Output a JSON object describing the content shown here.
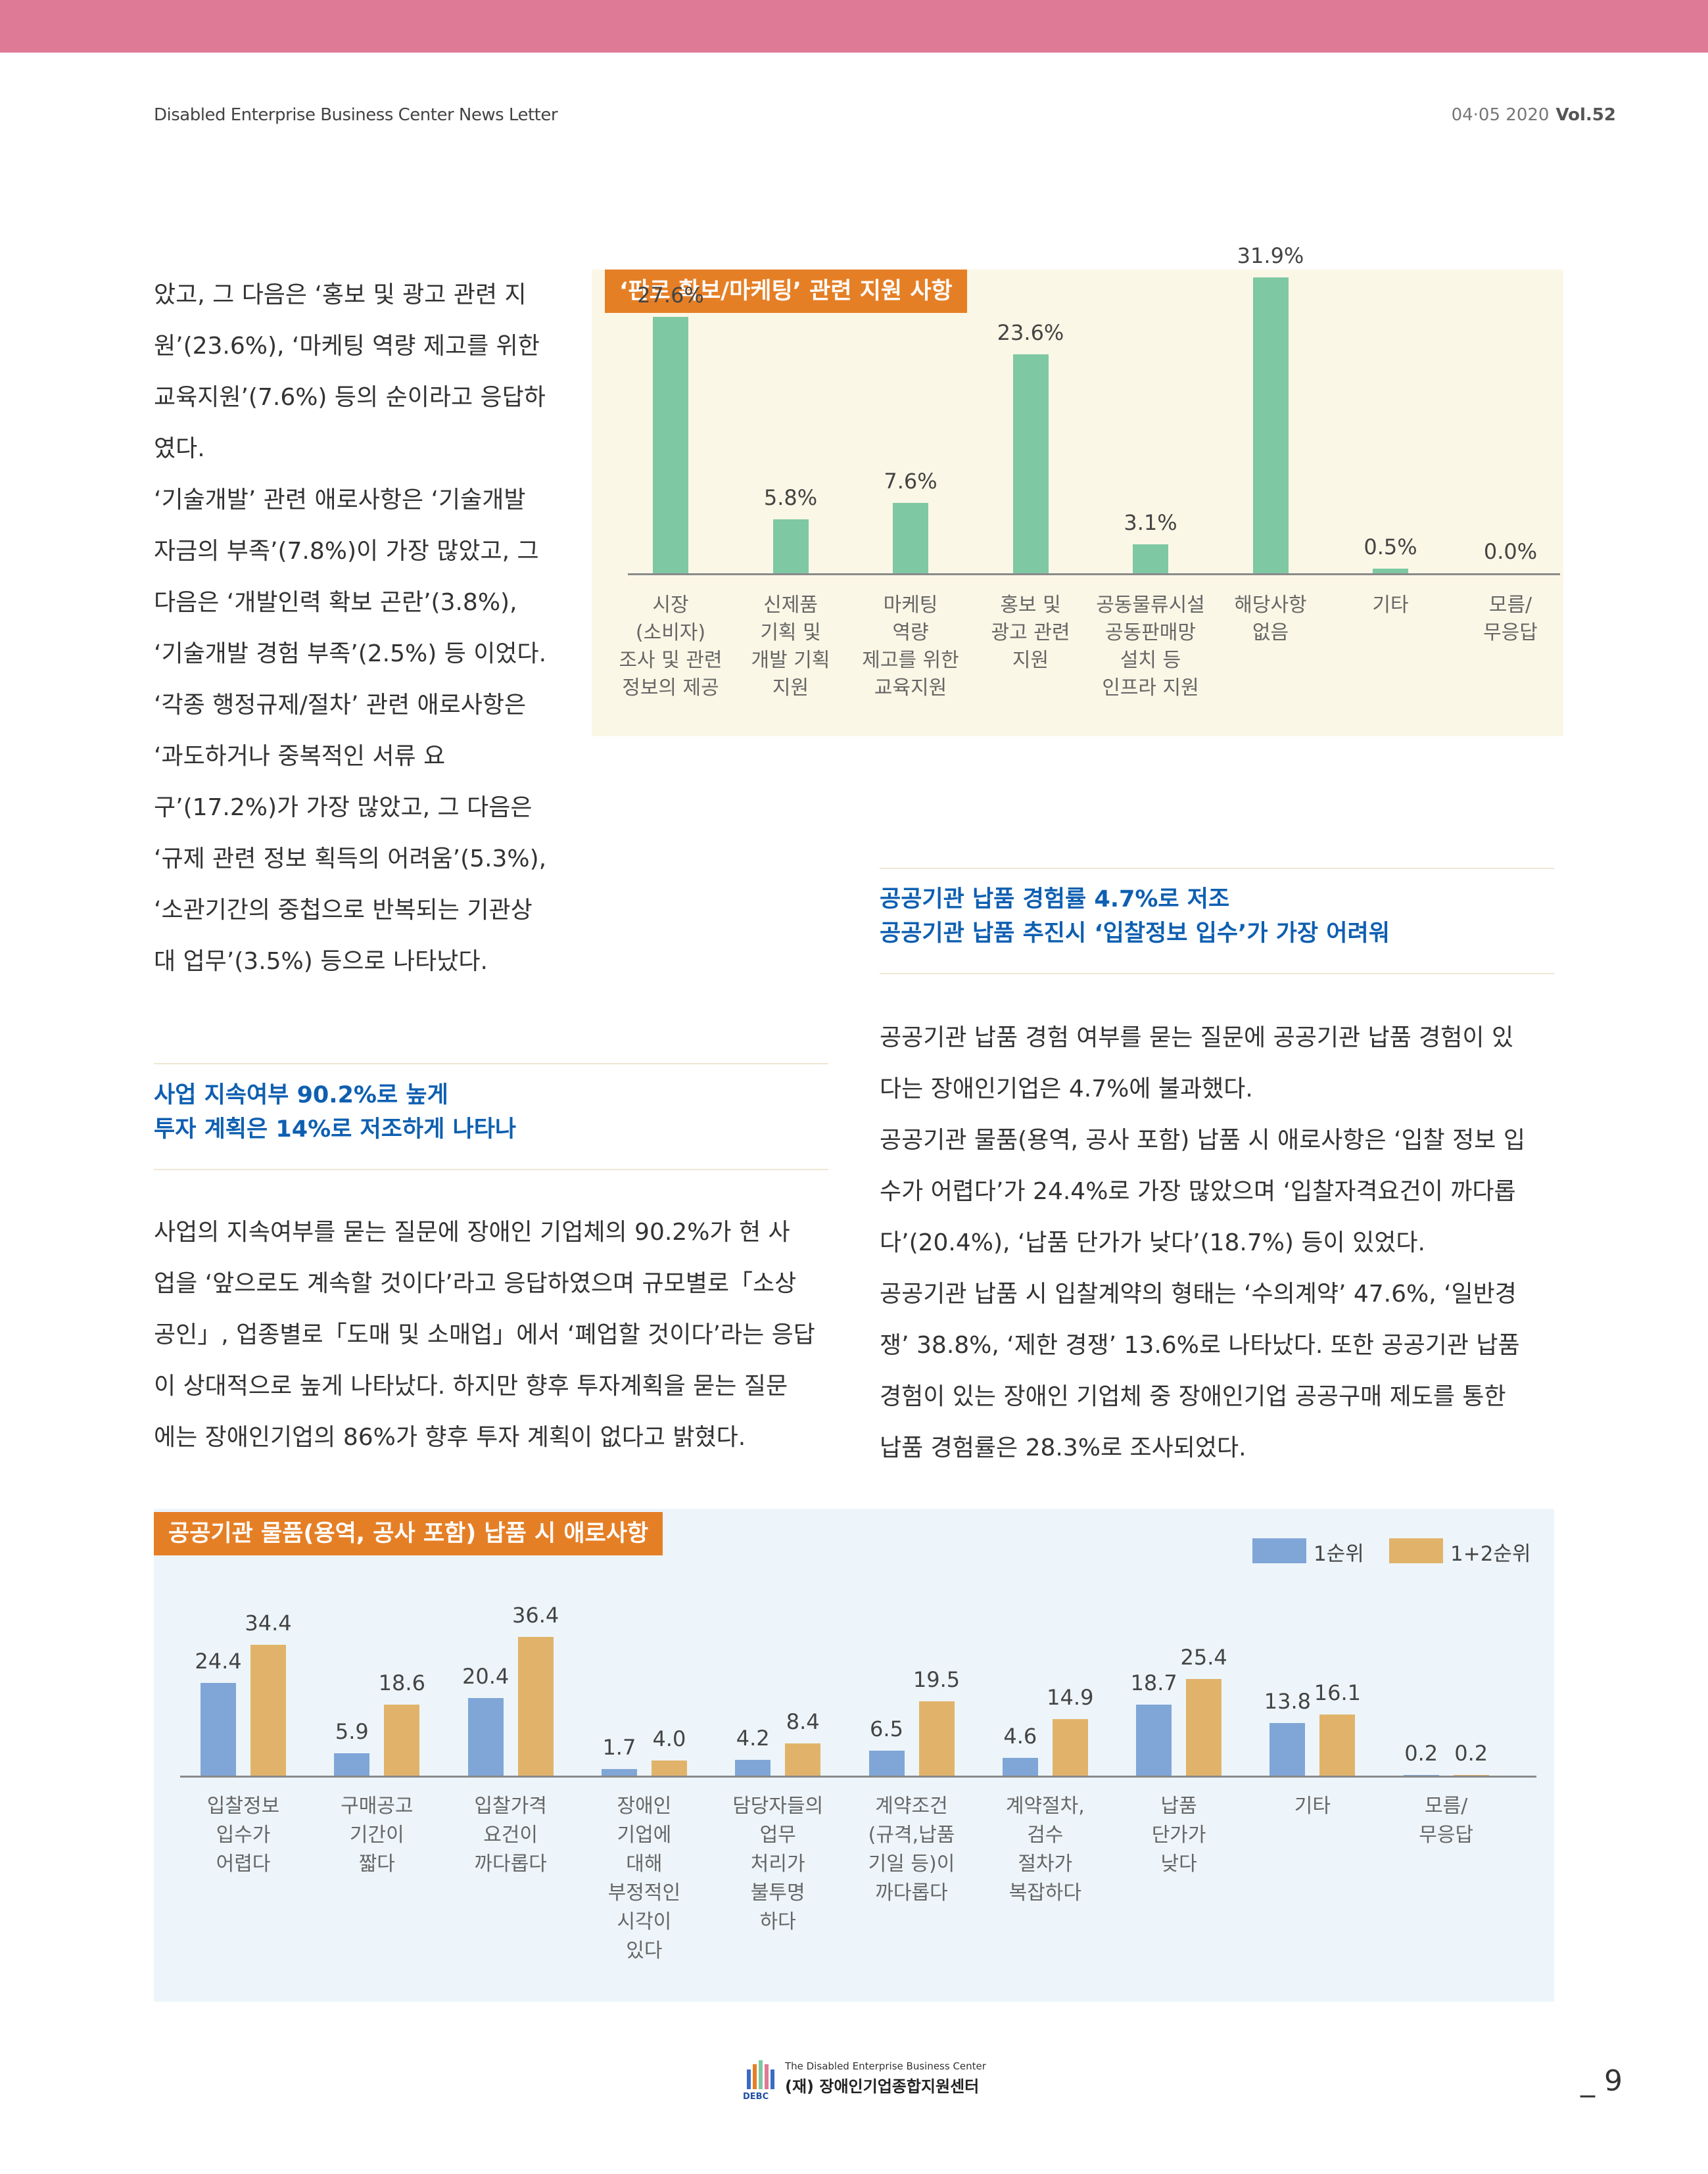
{
  "header": {
    "publication": "Disabled Enterprise Business Center News Letter",
    "date": "04·05 2020",
    "volume": "Vol.52"
  },
  "left_column": {
    "top_lines": [
      "았고, 그 다음은 ‘홍보 및 광고 관련 지",
      "원’(23.6%), ‘마케팅 역량 제고를 위한",
      "교육지원’(7.6%) 등의 순이라고 응답하",
      "였다.",
      "‘기술개발’ 관련 애로사항은 ‘기술개발",
      "자금의 부족’(7.8%)이 가장 많았고, 그",
      "다음은 ‘개발인력 확보 곤란’(3.8%),",
      "‘기술개발 경험 부족’(2.5%) 등 이었다.",
      "‘각종 행정규제/절차’ 관련 애로사항은",
      "‘과도하거나 중복적인 서류 요",
      "구’(17.2%)가 가장 많았고, 그 다음은",
      "‘규제 관련 정보 획득의 어려움’(5.3%),",
      "‘소관기간의 중첩으로 반복되는 기관상",
      "대 업무’(3.5%) 등으로 나타났다."
    ],
    "section_heading": [
      "사업 지속여부 90.2%로 높게",
      "투자 계획은 14%로 저조하게 나타나"
    ],
    "section_lines": [
      "사업의 지속여부를 묻는 질문에 장애인 기업체의 90.2%가 현 사",
      "업을 ‘앞으로도 계속할 것이다’라고 응답하였으며 규모별로「소상",
      "공인」, 업종별로「도매 및 소매업」에서 ‘폐업할 것이다’라는 응답",
      "이 상대적으로 높게 나타났다. 하지만 향후 투자계획을 묻는 질문",
      "에는 장애인기업의 86%가 향후 투자 계획이 없다고 밝혔다."
    ]
  },
  "right_column": {
    "section_heading": [
      "공공기관 납품 경험률 4.7%로 저조",
      "공공기관 납품 추진시 ‘입찰정보 입수’가 가장 어려워"
    ],
    "lines": [
      "공공기관 납품 경험 여부를 묻는 질문에 공공기관 납품 경험이 있",
      "다는 장애인기업은 4.7%에 불과했다.",
      "공공기관 물품(용역, 공사 포함) 납품 시 애로사항은 ‘입찰 정보 입",
      "수가 어렵다’가 24.4%로 가장 많았으며 ‘입찰자격요건이 까다롭",
      "다’(20.4%), ‘납품 단가가 낮다’(18.7%) 등이 있었다.",
      "공공기관 납품 시 입찰계약의 형태는 ‘수의계약’ 47.6%, ‘일반경",
      "쟁’ 38.8%, ‘제한 경쟁’ 13.6%로 나타났다. 또한 공공기관 납품",
      "경험이 있는 장애인 기업체 중 장애인기업 공공구매 제도를 통한",
      "납품 경험률은 28.3%로 조사되었다."
    ]
  },
  "chart_data": [
    {
      "type": "bar",
      "title": "‘판로 확보/마케팅’ 관련 지원 사항",
      "categories": [
        [
          "시장",
          "(소비자)",
          "조사 및 관련",
          "정보의 제공"
        ],
        [
          "신제품",
          "기획 및",
          "개발 기획",
          "지원"
        ],
        [
          "마케팅",
          "역량",
          "제고를 위한",
          "교육지원"
        ],
        [
          "홍보 및",
          "광고 관련",
          "지원"
        ],
        [
          "공동물류시설",
          "공동판매망",
          "설치 등",
          "인프라 지원"
        ],
        [
          "해당사항",
          "없음"
        ],
        [
          "기타"
        ],
        [
          "모름/",
          "무응답"
        ]
      ],
      "values": [
        27.6,
        5.8,
        7.6,
        23.6,
        3.1,
        31.9,
        0.5,
        0.0
      ],
      "labels": [
        "27.6%",
        "5.8%",
        "7.6%",
        "23.6%",
        "3.1%",
        "31.9%",
        "0.5%",
        "0.0%"
      ],
      "ylim": [
        0,
        34
      ],
      "color": "#7ec8a3",
      "grid": false
    },
    {
      "type": "bar",
      "title": "공공기관 물품(용역, 공사 포함) 납품 시 애로사항",
      "categories": [
        [
          "입찰정보",
          "입수가",
          "어렵다"
        ],
        [
          "구매공고",
          "기간이",
          "짧다"
        ],
        [
          "입찰가격",
          "요건이",
          "까다롭다"
        ],
        [
          "장애인",
          "기업에",
          "대해",
          "부정적인",
          "시각이",
          "있다"
        ],
        [
          "담당자들의",
          "업무",
          "처리가",
          "불투명",
          "하다"
        ],
        [
          "계약조건",
          "(규격,납품",
          "기일 등)이",
          "까다롭다"
        ],
        [
          "계약절차,",
          "검수",
          "절차가",
          "복잡하다"
        ],
        [
          "납품",
          "단가가",
          "낮다"
        ],
        [
          "기타"
        ],
        [
          "모름/",
          "무응답"
        ]
      ],
      "series": [
        {
          "name": "1순위",
          "color": "#7fa6d6",
          "values": [
            24.4,
            5.9,
            20.4,
            1.7,
            4.2,
            6.5,
            4.6,
            18.7,
            13.8,
            0.2
          ],
          "labels": [
            "24.4",
            "5.9",
            "20.4",
            "1.7",
            "4.2",
            "6.5",
            "4.6",
            "18.7",
            "13.8",
            "0.2"
          ]
        },
        {
          "name": "1+2순위",
          "color": "#e1b36a",
          "values": [
            34.4,
            18.6,
            36.4,
            4.0,
            8.4,
            19.5,
            14.9,
            25.4,
            16.1,
            0.2
          ],
          "labels": [
            "34.4",
            "18.6",
            "36.4",
            "4.0",
            "8.4",
            "19.5",
            "14.9",
            "25.4",
            "16.1",
            "0.2"
          ]
        }
      ],
      "ylim": [
        0,
        38
      ],
      "legend": "top-right",
      "grid": false
    }
  ],
  "footer": {
    "org_en": "The Disabled Enterprise Business Center",
    "org_ko": "(재) 장애인기업종합지원센터",
    "logo_text": "DEBC",
    "page": "9"
  }
}
